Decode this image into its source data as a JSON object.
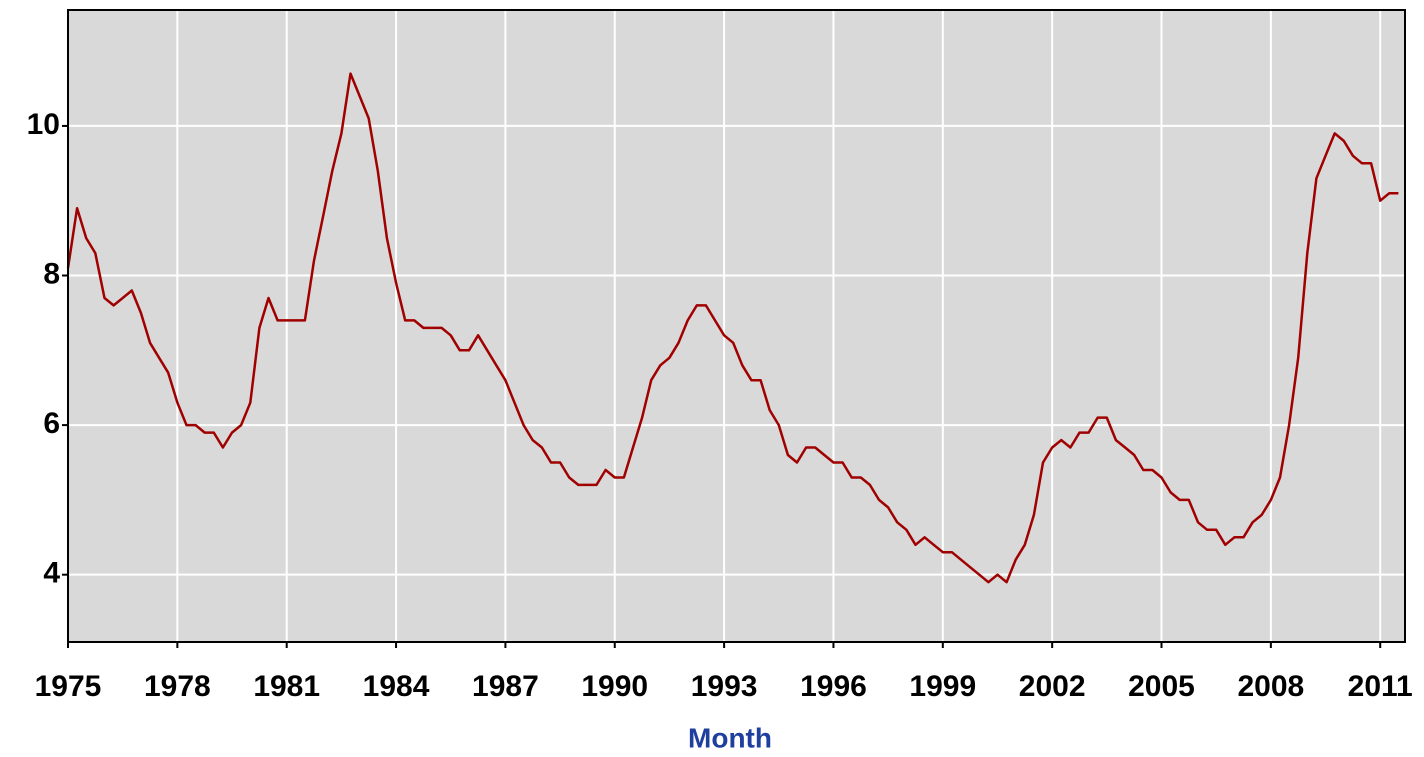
{
  "chart_data": {
    "type": "line",
    "x_label": "Month",
    "x": [
      1975,
      1975.25,
      1975.5,
      1975.75,
      1976,
      1976.25,
      1976.5,
      1976.75,
      1977,
      1977.25,
      1977.5,
      1977.75,
      1978,
      1978.25,
      1978.5,
      1978.75,
      1979,
      1979.25,
      1979.5,
      1979.75,
      1980,
      1980.25,
      1980.5,
      1980.75,
      1981,
      1981.25,
      1981.5,
      1981.75,
      1982,
      1982.25,
      1982.5,
      1982.75,
      1983,
      1983.25,
      1983.5,
      1983.75,
      1984,
      1984.25,
      1984.5,
      1984.75,
      1985,
      1985.25,
      1985.5,
      1985.75,
      1986,
      1986.25,
      1986.5,
      1986.75,
      1987,
      1987.25,
      1987.5,
      1987.75,
      1988,
      1988.25,
      1988.5,
      1988.75,
      1989,
      1989.25,
      1989.5,
      1989.75,
      1990,
      1990.25,
      1990.5,
      1990.75,
      1991,
      1991.25,
      1991.5,
      1991.75,
      1992,
      1992.25,
      1992.5,
      1992.75,
      1993,
      1993.25,
      1993.5,
      1993.75,
      1994,
      1994.25,
      1994.5,
      1994.75,
      1995,
      1995.25,
      1995.5,
      1995.75,
      1996,
      1996.25,
      1996.5,
      1996.75,
      1997,
      1997.25,
      1997.5,
      1997.75,
      1998,
      1998.25,
      1998.5,
      1998.75,
      1999,
      1999.25,
      1999.5,
      1999.75,
      2000,
      2000.25,
      2000.5,
      2000.75,
      2001,
      2001.25,
      2001.5,
      2001.75,
      2002,
      2002.25,
      2002.5,
      2002.75,
      2003,
      2003.25,
      2003.5,
      2003.75,
      2004,
      2004.25,
      2004.5,
      2004.75,
      2005,
      2005.25,
      2005.5,
      2005.75,
      2006,
      2006.25,
      2006.5,
      2006.75,
      2007,
      2007.25,
      2007.5,
      2007.75,
      2008,
      2008.25,
      2008.5,
      2008.75,
      2009,
      2009.25,
      2009.5,
      2009.75,
      2010,
      2010.25,
      2010.5,
      2010.75,
      2011,
      2011.25,
      2011.5
    ],
    "values": [
      8.1,
      8.9,
      8.5,
      8.3,
      7.7,
      7.6,
      7.7,
      7.8,
      7.5,
      7.1,
      6.9,
      6.7,
      6.3,
      6.0,
      6.0,
      5.9,
      5.9,
      5.7,
      5.9,
      6.0,
      6.3,
      7.3,
      7.7,
      7.4,
      7.4,
      7.4,
      7.4,
      8.2,
      8.8,
      9.4,
      9.9,
      10.7,
      10.4,
      10.1,
      9.4,
      8.5,
      7.9,
      7.4,
      7.4,
      7.3,
      7.3,
      7.3,
      7.2,
      7.0,
      7.0,
      7.2,
      7.0,
      6.8,
      6.6,
      6.3,
      6.0,
      5.8,
      5.7,
      5.5,
      5.5,
      5.3,
      5.2,
      5.2,
      5.2,
      5.4,
      5.3,
      5.3,
      5.7,
      6.1,
      6.6,
      6.8,
      6.9,
      7.1,
      7.4,
      7.6,
      7.6,
      7.4,
      7.2,
      7.1,
      6.8,
      6.6,
      6.6,
      6.2,
      6.0,
      5.6,
      5.5,
      5.7,
      5.7,
      5.6,
      5.5,
      5.5,
      5.3,
      5.3,
      5.2,
      5.0,
      4.9,
      4.7,
      4.6,
      4.4,
      4.5,
      4.4,
      4.3,
      4.3,
      4.2,
      4.1,
      4.0,
      3.9,
      4.0,
      3.9,
      4.2,
      4.4,
      4.8,
      5.5,
      5.7,
      5.8,
      5.7,
      5.9,
      5.9,
      6.1,
      6.1,
      5.8,
      5.7,
      5.6,
      5.4,
      5.4,
      5.3,
      5.1,
      5.0,
      5.0,
      4.7,
      4.6,
      4.6,
      4.4,
      4.5,
      4.5,
      4.7,
      4.8,
      5.0,
      5.3,
      6.0,
      6.9,
      8.3,
      9.3,
      9.6,
      9.9,
      9.8,
      9.6,
      9.5,
      9.5,
      9.0,
      9.1,
      9.1
    ],
    "color": "#a00000",
    "xlim": [
      1975,
      2011.68
    ],
    "xticks": [
      1975,
      1978,
      1981,
      1984,
      1987,
      1990,
      1993,
      1996,
      1999,
      2002,
      2005,
      2008,
      2011
    ],
    "ylim": [
      3.1,
      11.55
    ],
    "yticks": [
      4,
      6,
      8,
      10
    ],
    "grid": true
  }
}
